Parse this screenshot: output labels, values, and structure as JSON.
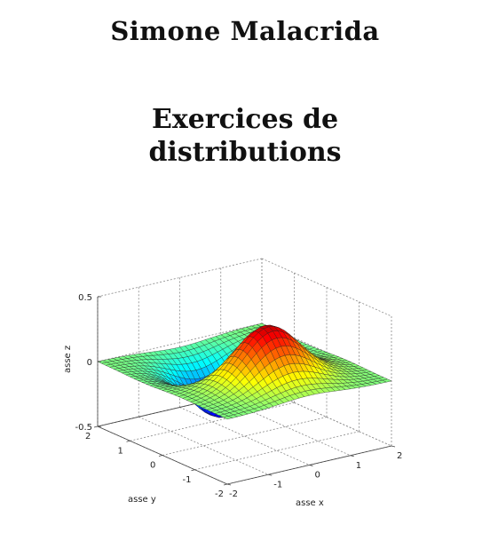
{
  "cover": {
    "author": "Simone Malacrida",
    "title_line1": "Exercices de",
    "title_line2": "distributions"
  },
  "chart_data": {
    "type": "surface",
    "function": "x * exp(-x^2 - y^2)",
    "xlabel": "asse x",
    "ylabel": "asse y",
    "zlabel": "asse z",
    "xlim": [
      -2,
      2
    ],
    "ylim": [
      -2,
      2
    ],
    "zlim": [
      -0.5,
      0.5
    ],
    "x_ticks": [
      "-2",
      "-1",
      "0",
      "1",
      "2"
    ],
    "y_ticks": [
      "-2",
      "-1",
      "0",
      "1",
      "2"
    ],
    "z_ticks": [
      "-0.5",
      "0",
      "0.5"
    ],
    "colormap": "jet",
    "grid": true
  }
}
